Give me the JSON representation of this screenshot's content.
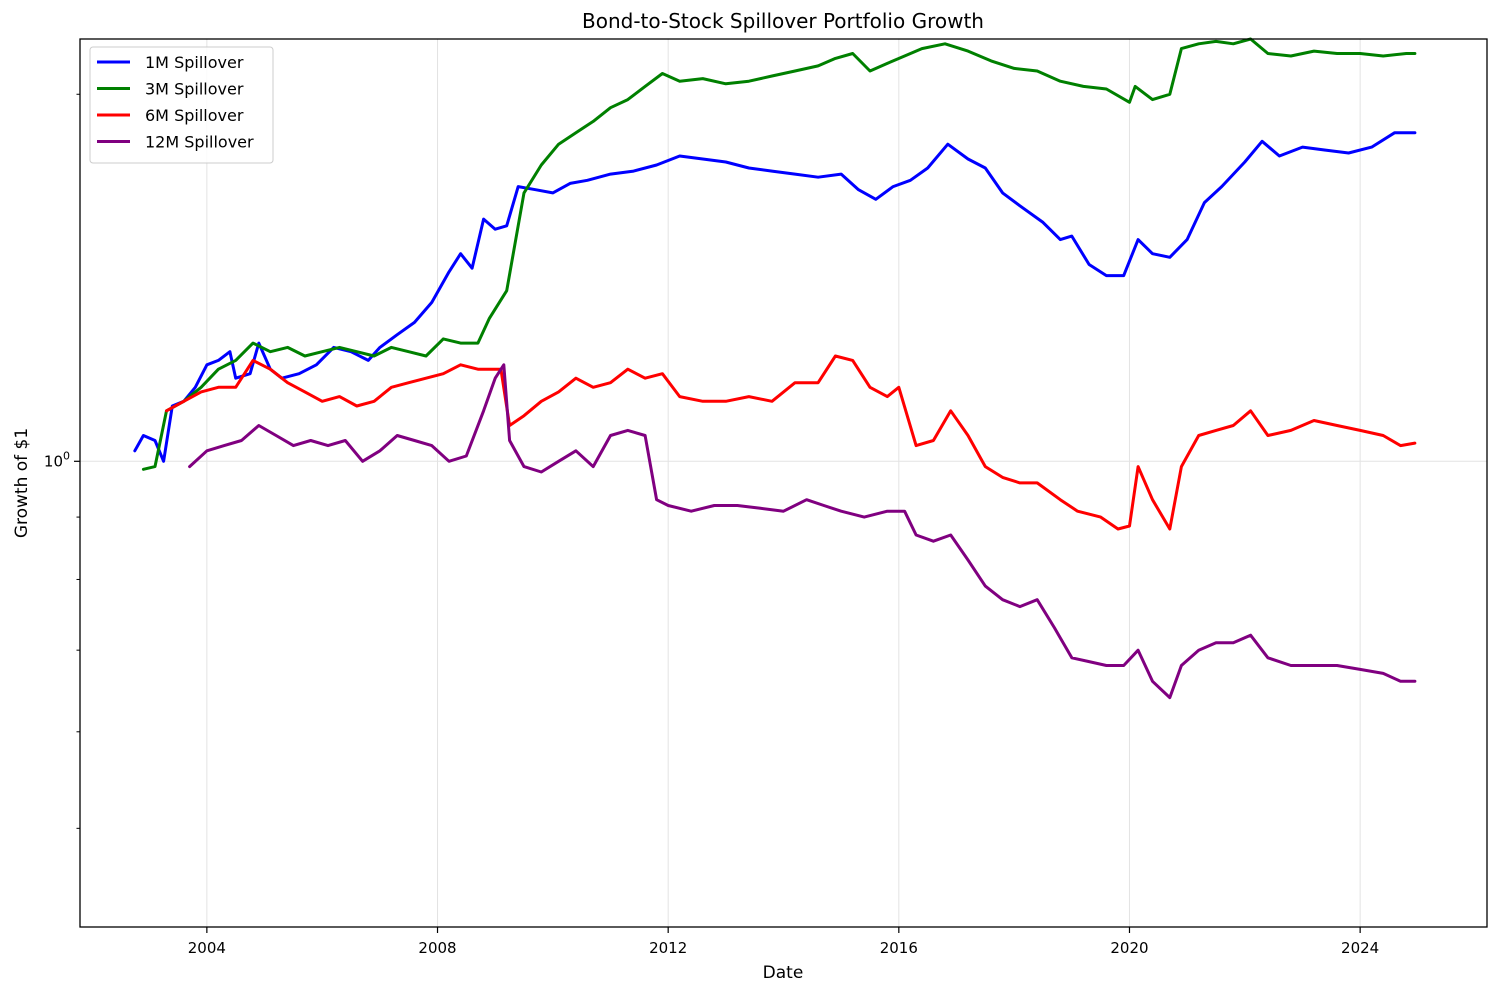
{
  "chart_data": {
    "type": "line",
    "title": "Bond-to-Stock Spillover Portfolio Growth",
    "xlabel": "Date",
    "ylabel": "Growth of $1",
    "x_scale": "time",
    "y_scale": "log",
    "xlim": [
      2001.8,
      2026.2
    ],
    "ylim": [
      0.415,
      2.22
    ],
    "x_ticks": [
      2004,
      2008,
      2012,
      2016,
      2020,
      2024
    ],
    "x_tick_labels": [
      "2004",
      "2008",
      "2012",
      "2016",
      "2020",
      "2024"
    ],
    "y_ticks": [
      1.0
    ],
    "y_tick_labels": [
      "10^0"
    ],
    "grid": true,
    "legend_position": "top-left",
    "series": [
      {
        "name": "1M Spillover",
        "color": "#0000ff",
        "points": [
          [
            2002.75,
            1.02
          ],
          [
            2002.9,
            1.05
          ],
          [
            2003.1,
            1.04
          ],
          [
            2003.25,
            1.0
          ],
          [
            2003.4,
            1.11
          ],
          [
            2003.6,
            1.12
          ],
          [
            2003.8,
            1.15
          ],
          [
            2004.0,
            1.2
          ],
          [
            2004.2,
            1.21
          ],
          [
            2004.4,
            1.23
          ],
          [
            2004.5,
            1.17
          ],
          [
            2004.75,
            1.18
          ],
          [
            2004.9,
            1.25
          ],
          [
            2005.1,
            1.19
          ],
          [
            2005.3,
            1.17
          ],
          [
            2005.6,
            1.18
          ],
          [
            2005.9,
            1.2
          ],
          [
            2006.2,
            1.24
          ],
          [
            2006.5,
            1.23
          ],
          [
            2006.8,
            1.21
          ],
          [
            2007.0,
            1.24
          ],
          [
            2007.3,
            1.27
          ],
          [
            2007.6,
            1.3
          ],
          [
            2007.9,
            1.35
          ],
          [
            2008.2,
            1.43
          ],
          [
            2008.4,
            1.48
          ],
          [
            2008.6,
            1.44
          ],
          [
            2008.8,
            1.58
          ],
          [
            2009.0,
            1.55
          ],
          [
            2009.2,
            1.56
          ],
          [
            2009.4,
            1.68
          ],
          [
            2009.7,
            1.67
          ],
          [
            2010.0,
            1.66
          ],
          [
            2010.3,
            1.69
          ],
          [
            2010.6,
            1.7
          ],
          [
            2011.0,
            1.72
          ],
          [
            2011.4,
            1.73
          ],
          [
            2011.8,
            1.75
          ],
          [
            2012.2,
            1.78
          ],
          [
            2012.6,
            1.77
          ],
          [
            2013.0,
            1.76
          ],
          [
            2013.4,
            1.74
          ],
          [
            2013.8,
            1.73
          ],
          [
            2014.2,
            1.72
          ],
          [
            2014.6,
            1.71
          ],
          [
            2015.0,
            1.72
          ],
          [
            2015.3,
            1.67
          ],
          [
            2015.6,
            1.64
          ],
          [
            2015.9,
            1.68
          ],
          [
            2016.2,
            1.7
          ],
          [
            2016.5,
            1.74
          ],
          [
            2016.85,
            1.82
          ],
          [
            2017.2,
            1.77
          ],
          [
            2017.5,
            1.74
          ],
          [
            2017.8,
            1.66
          ],
          [
            2018.1,
            1.62
          ],
          [
            2018.5,
            1.57
          ],
          [
            2018.8,
            1.52
          ],
          [
            2019.0,
            1.53
          ],
          [
            2019.3,
            1.45
          ],
          [
            2019.6,
            1.42
          ],
          [
            2019.9,
            1.42
          ],
          [
            2020.15,
            1.52
          ],
          [
            2020.4,
            1.48
          ],
          [
            2020.7,
            1.47
          ],
          [
            2021.0,
            1.52
          ],
          [
            2021.3,
            1.63
          ],
          [
            2021.6,
            1.68
          ],
          [
            2022.0,
            1.76
          ],
          [
            2022.3,
            1.83
          ],
          [
            2022.6,
            1.78
          ],
          [
            2023.0,
            1.81
          ],
          [
            2023.4,
            1.8
          ],
          [
            2023.8,
            1.79
          ],
          [
            2024.2,
            1.81
          ],
          [
            2024.6,
            1.86
          ],
          [
            2024.95,
            1.86
          ]
        ]
      },
      {
        "name": "3M Spillover",
        "color": "#008000",
        "points": [
          [
            2002.9,
            0.985
          ],
          [
            2003.1,
            0.99
          ],
          [
            2003.3,
            1.1
          ],
          [
            2003.6,
            1.12
          ],
          [
            2003.9,
            1.15
          ],
          [
            2004.2,
            1.19
          ],
          [
            2004.5,
            1.21
          ],
          [
            2004.8,
            1.25
          ],
          [
            2005.1,
            1.23
          ],
          [
            2005.4,
            1.24
          ],
          [
            2005.7,
            1.22
          ],
          [
            2006.0,
            1.23
          ],
          [
            2006.3,
            1.24
          ],
          [
            2006.6,
            1.23
          ],
          [
            2006.9,
            1.22
          ],
          [
            2007.2,
            1.24
          ],
          [
            2007.5,
            1.23
          ],
          [
            2007.8,
            1.22
          ],
          [
            2008.1,
            1.26
          ],
          [
            2008.4,
            1.25
          ],
          [
            2008.7,
            1.25
          ],
          [
            2008.9,
            1.31
          ],
          [
            2009.2,
            1.38
          ],
          [
            2009.5,
            1.66
          ],
          [
            2009.8,
            1.75
          ],
          [
            2010.1,
            1.82
          ],
          [
            2010.4,
            1.86
          ],
          [
            2010.7,
            1.9
          ],
          [
            2011.0,
            1.95
          ],
          [
            2011.3,
            1.98
          ],
          [
            2011.6,
            2.03
          ],
          [
            2011.9,
            2.08
          ],
          [
            2012.2,
            2.05
          ],
          [
            2012.6,
            2.06
          ],
          [
            2013.0,
            2.04
          ],
          [
            2013.4,
            2.05
          ],
          [
            2013.8,
            2.07
          ],
          [
            2014.2,
            2.09
          ],
          [
            2014.6,
            2.11
          ],
          [
            2014.9,
            2.14
          ],
          [
            2015.2,
            2.16
          ],
          [
            2015.5,
            2.09
          ],
          [
            2015.8,
            2.12
          ],
          [
            2016.1,
            2.15
          ],
          [
            2016.4,
            2.18
          ],
          [
            2016.8,
            2.2
          ],
          [
            2017.2,
            2.17
          ],
          [
            2017.6,
            2.13
          ],
          [
            2018.0,
            2.1
          ],
          [
            2018.4,
            2.09
          ],
          [
            2018.8,
            2.05
          ],
          [
            2019.2,
            2.03
          ],
          [
            2019.6,
            2.02
          ],
          [
            2020.0,
            1.97
          ],
          [
            2020.1,
            2.03
          ],
          [
            2020.4,
            1.98
          ],
          [
            2020.7,
            2.0
          ],
          [
            2020.9,
            2.18
          ],
          [
            2021.2,
            2.2
          ],
          [
            2021.5,
            2.21
          ],
          [
            2021.8,
            2.2
          ],
          [
            2022.1,
            2.22
          ],
          [
            2022.4,
            2.16
          ],
          [
            2022.8,
            2.15
          ],
          [
            2023.2,
            2.17
          ],
          [
            2023.6,
            2.16
          ],
          [
            2024.0,
            2.16
          ],
          [
            2024.4,
            2.15
          ],
          [
            2024.8,
            2.16
          ],
          [
            2024.95,
            2.16
          ]
        ]
      },
      {
        "name": "6M Spillover",
        "color": "#ff0000",
        "points": [
          [
            2003.3,
            1.1
          ],
          [
            2003.6,
            1.12
          ],
          [
            2003.9,
            1.14
          ],
          [
            2004.2,
            1.15
          ],
          [
            2004.5,
            1.15
          ],
          [
            2004.8,
            1.21
          ],
          [
            2005.1,
            1.19
          ],
          [
            2005.4,
            1.16
          ],
          [
            2005.7,
            1.14
          ],
          [
            2006.0,
            1.12
          ],
          [
            2006.3,
            1.13
          ],
          [
            2006.6,
            1.11
          ],
          [
            2006.9,
            1.12
          ],
          [
            2007.2,
            1.15
          ],
          [
            2007.5,
            1.16
          ],
          [
            2007.8,
            1.17
          ],
          [
            2008.1,
            1.18
          ],
          [
            2008.4,
            1.2
          ],
          [
            2008.7,
            1.19
          ],
          [
            2008.9,
            1.19
          ],
          [
            2009.1,
            1.19
          ],
          [
            2009.25,
            1.07
          ],
          [
            2009.5,
            1.09
          ],
          [
            2009.8,
            1.12
          ],
          [
            2010.1,
            1.14
          ],
          [
            2010.4,
            1.17
          ],
          [
            2010.7,
            1.15
          ],
          [
            2011.0,
            1.16
          ],
          [
            2011.3,
            1.19
          ],
          [
            2011.6,
            1.17
          ],
          [
            2011.9,
            1.18
          ],
          [
            2012.2,
            1.13
          ],
          [
            2012.6,
            1.12
          ],
          [
            2013.0,
            1.12
          ],
          [
            2013.4,
            1.13
          ],
          [
            2013.8,
            1.12
          ],
          [
            2014.2,
            1.16
          ],
          [
            2014.6,
            1.16
          ],
          [
            2014.9,
            1.22
          ],
          [
            2015.2,
            1.21
          ],
          [
            2015.5,
            1.15
          ],
          [
            2015.8,
            1.13
          ],
          [
            2016.0,
            1.15
          ],
          [
            2016.3,
            1.03
          ],
          [
            2016.6,
            1.04
          ],
          [
            2016.9,
            1.1
          ],
          [
            2017.2,
            1.05
          ],
          [
            2017.5,
            0.99
          ],
          [
            2017.8,
            0.97
          ],
          [
            2018.1,
            0.96
          ],
          [
            2018.4,
            0.96
          ],
          [
            2018.8,
            0.93
          ],
          [
            2019.1,
            0.91
          ],
          [
            2019.5,
            0.9
          ],
          [
            2019.8,
            0.88
          ],
          [
            2020.0,
            0.885
          ],
          [
            2020.15,
            0.99
          ],
          [
            2020.4,
            0.93
          ],
          [
            2020.7,
            0.88
          ],
          [
            2020.9,
            0.99
          ],
          [
            2021.2,
            1.05
          ],
          [
            2021.5,
            1.06
          ],
          [
            2021.8,
            1.07
          ],
          [
            2022.1,
            1.1
          ],
          [
            2022.4,
            1.05
          ],
          [
            2022.8,
            1.06
          ],
          [
            2023.2,
            1.08
          ],
          [
            2023.6,
            1.07
          ],
          [
            2024.0,
            1.06
          ],
          [
            2024.4,
            1.05
          ],
          [
            2024.7,
            1.03
          ],
          [
            2024.95,
            1.035
          ]
        ]
      },
      {
        "name": "12M Spillover",
        "color": "#800080",
        "points": [
          [
            2003.7,
            0.99
          ],
          [
            2004.0,
            1.02
          ],
          [
            2004.3,
            1.03
          ],
          [
            2004.6,
            1.04
          ],
          [
            2004.9,
            1.07
          ],
          [
            2005.2,
            1.05
          ],
          [
            2005.5,
            1.03
          ],
          [
            2005.8,
            1.04
          ],
          [
            2006.1,
            1.03
          ],
          [
            2006.4,
            1.04
          ],
          [
            2006.7,
            1.0
          ],
          [
            2007.0,
            1.02
          ],
          [
            2007.3,
            1.05
          ],
          [
            2007.6,
            1.04
          ],
          [
            2007.9,
            1.03
          ],
          [
            2008.2,
            1.0
          ],
          [
            2008.5,
            1.01
          ],
          [
            2008.8,
            1.1
          ],
          [
            2009.0,
            1.17
          ],
          [
            2009.15,
            1.2
          ],
          [
            2009.25,
            1.04
          ],
          [
            2009.5,
            0.99
          ],
          [
            2009.8,
            0.98
          ],
          [
            2010.1,
            1.0
          ],
          [
            2010.4,
            1.02
          ],
          [
            2010.7,
            0.99
          ],
          [
            2011.0,
            1.05
          ],
          [
            2011.3,
            1.06
          ],
          [
            2011.6,
            1.05
          ],
          [
            2011.8,
            0.93
          ],
          [
            2012.0,
            0.92
          ],
          [
            2012.4,
            0.91
          ],
          [
            2012.8,
            0.92
          ],
          [
            2013.2,
            0.92
          ],
          [
            2013.6,
            0.915
          ],
          [
            2014.0,
            0.91
          ],
          [
            2014.4,
            0.93
          ],
          [
            2014.7,
            0.92
          ],
          [
            2015.0,
            0.91
          ],
          [
            2015.4,
            0.9
          ],
          [
            2015.8,
            0.91
          ],
          [
            2016.1,
            0.91
          ],
          [
            2016.3,
            0.87
          ],
          [
            2016.6,
            0.86
          ],
          [
            2016.9,
            0.87
          ],
          [
            2017.2,
            0.83
          ],
          [
            2017.5,
            0.79
          ],
          [
            2017.8,
            0.77
          ],
          [
            2018.1,
            0.76
          ],
          [
            2018.4,
            0.77
          ],
          [
            2018.7,
            0.73
          ],
          [
            2019.0,
            0.69
          ],
          [
            2019.3,
            0.685
          ],
          [
            2019.6,
            0.68
          ],
          [
            2019.9,
            0.68
          ],
          [
            2020.15,
            0.7
          ],
          [
            2020.4,
            0.66
          ],
          [
            2020.7,
            0.64
          ],
          [
            2020.9,
            0.68
          ],
          [
            2021.2,
            0.7
          ],
          [
            2021.5,
            0.71
          ],
          [
            2021.8,
            0.71
          ],
          [
            2022.1,
            0.72
          ],
          [
            2022.4,
            0.69
          ],
          [
            2022.8,
            0.68
          ],
          [
            2023.2,
            0.68
          ],
          [
            2023.6,
            0.68
          ],
          [
            2024.0,
            0.675
          ],
          [
            2024.4,
            0.67
          ],
          [
            2024.7,
            0.66
          ],
          [
            2024.95,
            0.66
          ]
        ]
      }
    ]
  }
}
